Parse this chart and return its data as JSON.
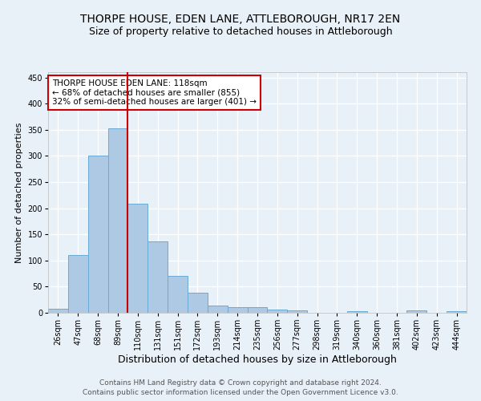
{
  "title": "THORPE HOUSE, EDEN LANE, ATTLEBOROUGH, NR17 2EN",
  "subtitle": "Size of property relative to detached houses in Attleborough",
  "xlabel": "Distribution of detached houses by size in Attleborough",
  "ylabel": "Number of detached properties",
  "categories": [
    "26sqm",
    "47sqm",
    "68sqm",
    "89sqm",
    "110sqm",
    "131sqm",
    "151sqm",
    "172sqm",
    "193sqm",
    "214sqm",
    "235sqm",
    "256sqm",
    "277sqm",
    "298sqm",
    "319sqm",
    "340sqm",
    "360sqm",
    "381sqm",
    "402sqm",
    "423sqm",
    "444sqm"
  ],
  "values": [
    8,
    110,
    300,
    353,
    208,
    136,
    70,
    38,
    14,
    11,
    10,
    6,
    5,
    0,
    0,
    3,
    0,
    0,
    4,
    0,
    3
  ],
  "bar_color": "#aec9e4",
  "bar_edge_color": "#6aaad4",
  "reference_line_color": "#cc0000",
  "reference_line_index": 4,
  "annotation_text": "THORPE HOUSE EDEN LANE: 118sqm\n← 68% of detached houses are smaller (855)\n32% of semi-detached houses are larger (401) →",
  "annotation_box_color": "white",
  "annotation_box_edge_color": "#cc0000",
  "ylim": [
    0,
    460
  ],
  "yticks": [
    0,
    50,
    100,
    150,
    200,
    250,
    300,
    350,
    400,
    450
  ],
  "footnote1": "Contains HM Land Registry data © Crown copyright and database right 2024.",
  "footnote2": "Contains public sector information licensed under the Open Government Licence v3.0.",
  "background_color": "#e8f0f8",
  "grid_color": "white",
  "title_fontsize": 10,
  "subtitle_fontsize": 9,
  "xlabel_fontsize": 9,
  "ylabel_fontsize": 8,
  "tick_fontsize": 7,
  "annotation_fontsize": 7.5,
  "footnote_fontsize": 6.5
}
